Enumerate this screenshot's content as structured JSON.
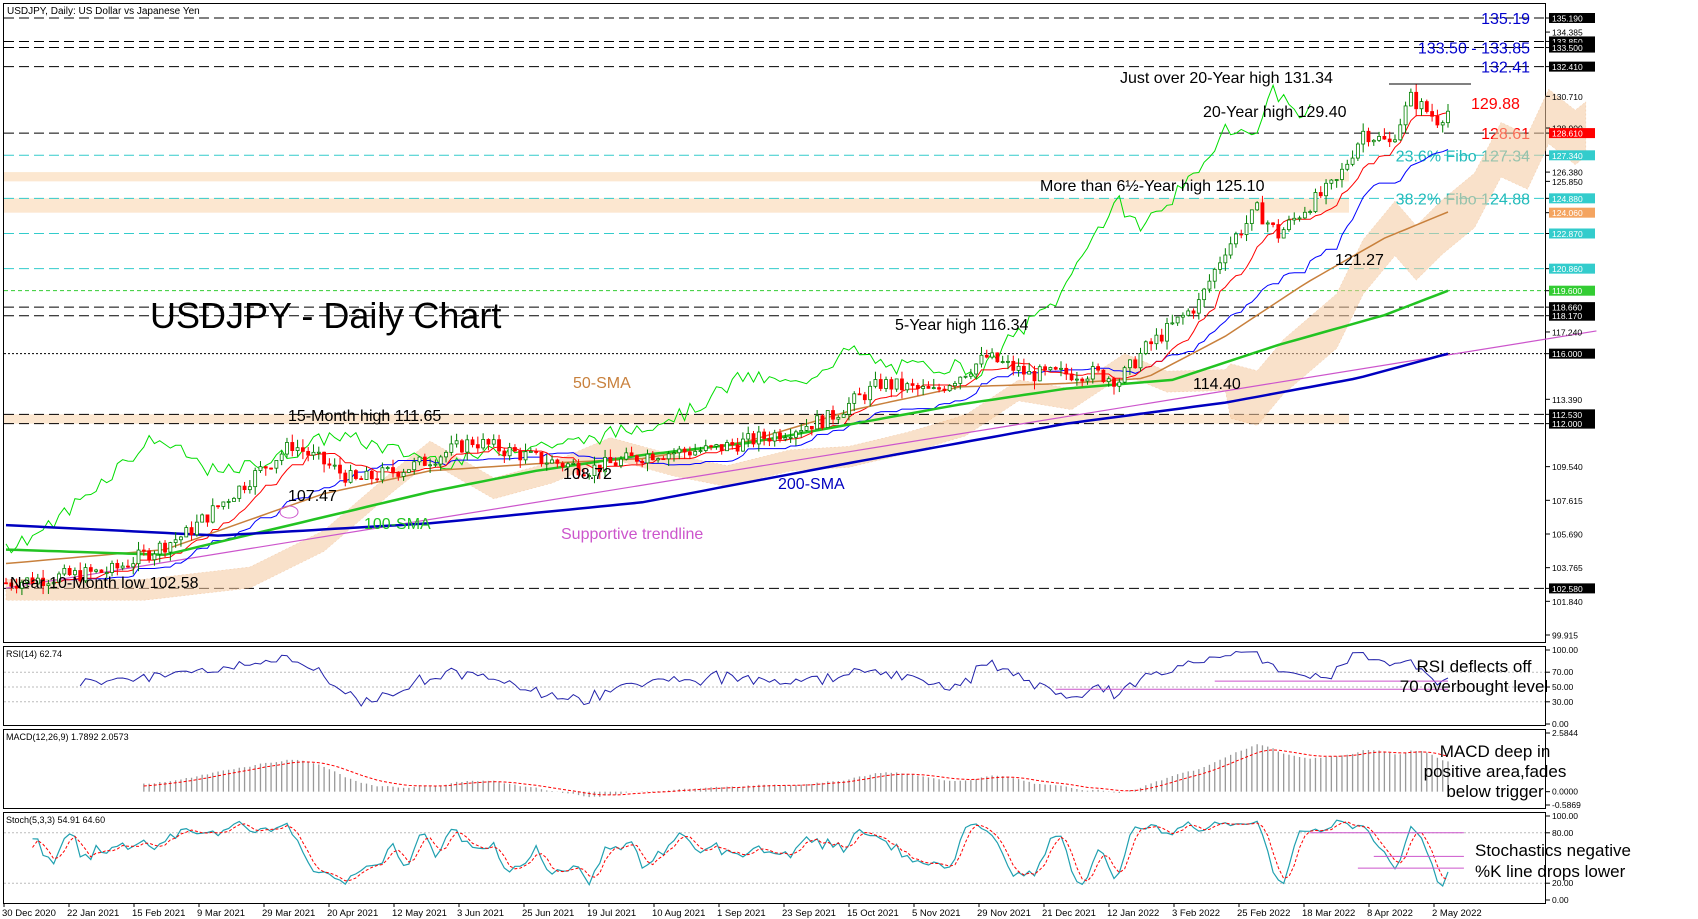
{
  "header": {
    "title": "USDJPY, Daily: US Dollar vs Japanese Yen"
  },
  "chart_data": {
    "type": "candlestick",
    "title": "USDJPY - Daily Chart",
    "symbol": "USDJPY",
    "timeframe": "Daily",
    "colors": {
      "up": "#008000",
      "down": "#ff0000",
      "sma50": "#c8803c",
      "sma100": "#22c322",
      "sma200": "#0000c0",
      "trendline": "#cc55cc",
      "kijun": "#0000ff",
      "tenkan": "#ff0000",
      "chikou": "#00dd00",
      "cloud": "#f5c9a0"
    },
    "price_axis": {
      "min": 99.915,
      "max": 135.19,
      "ticks": [
        "135.190",
        "134.385",
        "133.850",
        "133.500",
        "132.410",
        "130.710",
        "128.900",
        "128.610",
        "127.340",
        "126.380",
        "125.850",
        "124.880",
        "124.060",
        "122.870",
        "120.860",
        "119.600",
        "118.660",
        "118.170",
        "117.240",
        "116.000",
        "113.390",
        "112.530",
        "112.000",
        "109.540",
        "107.615",
        "105.690",
        "103.765",
        "102.580",
        "101.840",
        "99.915"
      ]
    },
    "x_axis": {
      "labels": [
        "30 Dec 2020",
        "22 Jan 2021",
        "15 Feb 2021",
        "9 Mar 2021",
        "29 Mar 2021",
        "20 Apr 2021",
        "12 May 2021",
        "3 Jun 2021",
        "25 Jun 2021",
        "19 Jul 2021",
        "10 Aug 2021",
        "1 Sep 2021",
        "23 Sep 2021",
        "15 Oct 2021",
        "5 Nov 2021",
        "29 Nov 2021",
        "21 Dec 2021",
        "12 Jan 2022",
        "3 Feb 2022",
        "25 Feb 2022",
        "18 Mar 2022",
        "8 Apr 2022",
        "2 May 2022"
      ]
    },
    "close_path": [
      [
        0,
        102.9
      ],
      [
        20,
        103.6
      ],
      [
        34,
        105.7
      ],
      [
        47,
        109.1
      ],
      [
        54,
        110.8
      ],
      [
        66,
        108.7
      ],
      [
        77,
        109.6
      ],
      [
        88,
        111.0
      ],
      [
        100,
        110.0
      ],
      [
        110,
        109.4
      ],
      [
        122,
        110.3
      ],
      [
        133,
        110.5
      ],
      [
        144,
        111.3
      ],
      [
        155,
        112.3
      ],
      [
        165,
        114.3
      ],
      [
        175,
        113.8
      ],
      [
        185,
        115.8
      ],
      [
        193,
        114.8
      ],
      [
        205,
        114.9
      ],
      [
        210,
        114.5
      ],
      [
        215,
        116.3
      ],
      [
        225,
        118.9
      ],
      [
        230,
        122.0
      ],
      [
        236,
        124.2
      ],
      [
        240,
        122.8
      ],
      [
        245,
        124.3
      ],
      [
        251,
        125.8
      ],
      [
        256,
        128.7
      ],
      [
        261,
        128.0
      ],
      [
        265,
        130.6
      ],
      [
        270,
        129.4
      ],
      [
        272,
        129.88
      ]
    ],
    "sma": [
      {
        "name": "50-SMA",
        "period": 50,
        "points": [
          [
            0,
            104.0
          ],
          [
            30,
            104.8
          ],
          [
            60,
            108.0
          ],
          [
            80,
            109.3
          ],
          [
            100,
            109.7
          ],
          [
            120,
            110.0
          ],
          [
            140,
            111.0
          ],
          [
            160,
            112.8
          ],
          [
            180,
            114.1
          ],
          [
            200,
            114.3
          ],
          [
            215,
            114.6
          ],
          [
            230,
            117.0
          ],
          [
            245,
            120.0
          ],
          [
            260,
            122.6
          ],
          [
            272,
            124.1
          ]
        ]
      },
      {
        "name": "100-SMA",
        "period": 100,
        "points": [
          [
            0,
            104.8
          ],
          [
            30,
            104.5
          ],
          [
            55,
            106.3
          ],
          [
            80,
            108.1
          ],
          [
            100,
            109.3
          ],
          [
            120,
            110.2
          ],
          [
            140,
            110.9
          ],
          [
            160,
            112.0
          ],
          [
            180,
            113.1
          ],
          [
            200,
            114.0
          ],
          [
            220,
            114.5
          ],
          [
            240,
            116.5
          ],
          [
            260,
            118.2
          ],
          [
            272,
            119.6
          ]
        ]
      },
      {
        "name": "200-SMA",
        "period": 200,
        "points": [
          [
            0,
            106.2
          ],
          [
            40,
            105.6
          ],
          [
            80,
            106.3
          ],
          [
            120,
            107.5
          ],
          [
            160,
            109.8
          ],
          [
            200,
            112.0
          ],
          [
            230,
            113.2
          ],
          [
            255,
            114.6
          ],
          [
            272,
            116.0
          ]
        ]
      }
    ],
    "trendline": {
      "name": "Supportive trendline",
      "points": [
        [
          0,
          102.6
        ],
        [
          300,
          117.3
        ]
      ]
    },
    "horizontal_levels": [
      {
        "value": 135.19,
        "label": "135.19",
        "style": "long-dash",
        "label_color": "#0000cc"
      },
      {
        "value": 133.85,
        "label": "",
        "style": "long-dash"
      },
      {
        "value": 133.5,
        "label": "133.50 - 133.85",
        "style": "long-dash",
        "label_color": "#0000cc"
      },
      {
        "value": 132.41,
        "label": "132.41",
        "style": "long-dash",
        "label_color": "#0000cc"
      },
      {
        "value": 128.61,
        "label": "128.61",
        "style": "long-dash",
        "label_color": "#ff0000"
      },
      {
        "value": 127.34,
        "label": "23.6% Fibo 127.34",
        "style": "fibo-dash",
        "label_color": "#22bbbb"
      },
      {
        "value": 124.88,
        "label": "38.2% Fibo 124.88",
        "style": "fibo-dash",
        "label_color": "#22bbbb"
      },
      {
        "value": 122.87,
        "label": "",
        "style": "fibo-dash"
      },
      {
        "value": 120.86,
        "label": "",
        "style": "fibo-dash"
      },
      {
        "value": 119.6,
        "label": "",
        "style": "green-dash"
      },
      {
        "value": 118.66,
        "label": "",
        "style": "long-dash"
      },
      {
        "value": 118.17,
        "label": "",
        "style": "long-dash"
      },
      {
        "value": 116.0,
        "label": "",
        "style": "dotted"
      },
      {
        "value": 112.53,
        "label": "",
        "style": "long-dash"
      },
      {
        "value": 112.0,
        "label": "",
        "style": "long-dash"
      },
      {
        "value": 102.58,
        "label": "",
        "style": "long-dash"
      }
    ],
    "zones": [
      [
        126.38,
        125.85
      ],
      [
        124.88,
        124.06
      ],
      [
        112.53,
        112.0
      ]
    ],
    "annotations": {
      "just_over_20y": "Just over 20-Year high 131.34",
      "twenty_y_high": "20-Year high 129.40",
      "current_price": "129.88",
      "six_half_year": "More than 6½-Year high 125.10",
      "low_12127": "121.27",
      "five_year": "5-Year high 116.34",
      "low_11440": "114.40",
      "sma50": "50-SMA",
      "fifteen_month": "15-Month high 111.65",
      "low_10872": "108.72",
      "sma200": "200-SMA",
      "low_10747": "107.47",
      "sma100": "100-SMA",
      "trendline": "Supportive trendline",
      "ten_month_low": "Near 10-Month low 102.58"
    }
  },
  "indicators": {
    "rsi": {
      "header": "RSI(14) 62.74",
      "ticks": [
        "100.00",
        "70.00",
        "50.00",
        "30.00",
        "0.00"
      ],
      "note_line1": "RSI deflects off",
      "note_line2": "70 overbought level"
    },
    "macd": {
      "header": "MACD(12,26,9) 1.7892 2.0573",
      "ticks": [
        "2.5844",
        "0.0000",
        "-0.5869"
      ],
      "note_line1": "MACD deep in",
      "note_line2": "positive area,fades",
      "note_line3": "below trigger"
    },
    "stoch": {
      "header": "Stoch(5,3,3) 54.91 64.60",
      "ticks": [
        "100.00",
        "80.00",
        "20.00",
        "0.00"
      ],
      "note_line1": "Stochastics negative",
      "note_line2": "%K line drops lower"
    }
  }
}
